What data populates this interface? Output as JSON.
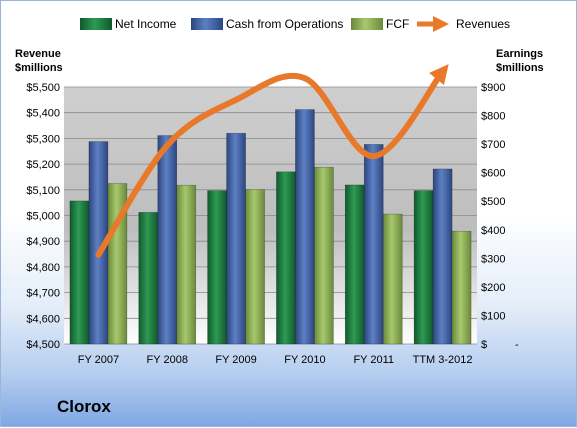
{
  "company": "Clorox",
  "colors": {
    "net_income": "#1a7a3e",
    "cash_from_operations": "#3f60a6",
    "fcf": "#8fb15a",
    "revenues": "#e8782a"
  },
  "chart_data": {
    "type": "bar",
    "categories": [
      "FY 2007",
      "FY 2008",
      "FY 2009",
      "FY 2010",
      "FY 2011",
      "TTM 3-2012"
    ],
    "series": [
      {
        "name": "Net Income",
        "axis": "right",
        "type": "bar",
        "values": [
          501,
          461,
          537,
          603,
          557,
          537
        ]
      },
      {
        "name": "Cash from Operations",
        "axis": "right",
        "type": "bar",
        "values": [
          709,
          730,
          738,
          821,
          699,
          613
        ]
      },
      {
        "name": "FCF",
        "axis": "right",
        "type": "bar",
        "values": [
          562,
          556,
          541,
          619,
          455,
          395
        ]
      },
      {
        "name": "Revenues",
        "axis": "left",
        "type": "line",
        "values": [
          4847,
          5273,
          5450,
          5534,
          5231,
          5560
        ]
      }
    ],
    "left_axis": {
      "title_lines": [
        "Revenue",
        "$millions"
      ],
      "ylim": [
        4500,
        5500
      ],
      "ticks": [
        4500,
        4600,
        4700,
        4800,
        4900,
        5000,
        5100,
        5200,
        5300,
        5400,
        5500
      ],
      "tick_labels": [
        "$4,500",
        "$4,600",
        "$4,700",
        "$4,800",
        "$4,900",
        "$5,000",
        "$5,100",
        "$5,200",
        "$5,300",
        "$5,400",
        "$5,500"
      ]
    },
    "right_axis": {
      "title_lines": [
        "Earnings",
        "$millions"
      ],
      "ylim": [
        0,
        900
      ],
      "ticks": [
        0,
        100,
        200,
        300,
        400,
        500,
        600,
        700,
        800,
        900
      ],
      "tick_labels": [
        "$-",
        "$100",
        "$200",
        "$300",
        "$400",
        "$500",
        "$600",
        "$700",
        "$800",
        "$900"
      ]
    },
    "legend_position": "top",
    "grid": true
  }
}
